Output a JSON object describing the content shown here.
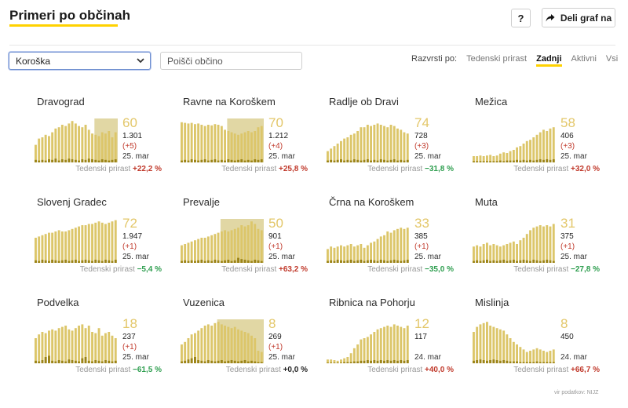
{
  "header": {
    "title": "Primeri po občinah",
    "help_label": "?",
    "share_label": "Deli graf na"
  },
  "filters": {
    "region_value": "Koroška",
    "search_placeholder": "Poišči občino",
    "sort_label": "Razvrsti po:",
    "sort_options": [
      "Tedenski prirast",
      "Zadnji",
      "Aktivni",
      "Vsi"
    ],
    "sort_active": "Zadnji"
  },
  "growth_label": "Tedenski prirast",
  "colors": {
    "bar_active": "#dcc66a",
    "bar_recent": "#c2a62f",
    "bar_dark": "#9c8418",
    "shade": "#c8b65a",
    "up": "#c0392b",
    "down": "#2e9e4f",
    "neutral": "#222222",
    "number": "#e3c76a",
    "accent": "#ffd200"
  },
  "chart_data": [
    {
      "type": "bar",
      "title": "Dravograd",
      "big": "60",
      "total": "1.301",
      "delta": "(+5)",
      "date": "25. mar",
      "growth": "+22,2 %",
      "trend": "up",
      "values": [
        28,
        38,
        40,
        44,
        42,
        48,
        54,
        56,
        60,
        58,
        62,
        66,
        62,
        58,
        56,
        60,
        52,
        46,
        44,
        42,
        48,
        46,
        50,
        40,
        48
      ],
      "recent": [
        4,
        3,
        4,
        3,
        5,
        4,
        6,
        3,
        5,
        4,
        6,
        5,
        4,
        3,
        5,
        4,
        6,
        5,
        4,
        3,
        5,
        4,
        3,
        4,
        5
      ],
      "shade_from": 18
    },
    {
      "type": "bar",
      "title": "Ravne na Koroškem",
      "big": "70",
      "total": "1.212",
      "delta": "(+4)",
      "date": "25. mar",
      "growth": "+25,8 %",
      "trend": "up",
      "values": [
        64,
        63,
        62,
        63,
        61,
        62,
        60,
        58,
        60,
        59,
        61,
        60,
        58,
        52,
        50,
        48,
        46,
        44,
        46,
        48,
        50,
        48,
        50,
        56,
        58
      ],
      "recent": [
        3,
        4,
        3,
        5,
        4,
        3,
        4,
        5,
        3,
        4,
        5,
        3,
        4,
        3,
        5,
        4,
        3,
        4,
        5,
        3,
        4,
        3,
        5,
        4,
        5
      ],
      "shade_from": 14
    },
    {
      "type": "bar",
      "title": "Radlje ob Dravi",
      "big": "74",
      "total": "728",
      "delta": "(+3)",
      "date": "25. mar",
      "growth": "−31,8 %",
      "trend": "down",
      "values": [
        18,
        22,
        26,
        30,
        34,
        38,
        40,
        44,
        46,
        50,
        56,
        56,
        60,
        58,
        60,
        62,
        60,
        58,
        56,
        60,
        58,
        54,
        52,
        48,
        46
      ],
      "recent": [
        3,
        4,
        3,
        4,
        5,
        3,
        4,
        3,
        5,
        4,
        3,
        4,
        5,
        3,
        4,
        3,
        5,
        4,
        3,
        4,
        5,
        3,
        4,
        3,
        4
      ],
      "shade_from": 25
    },
    {
      "type": "bar",
      "title": "Mežica",
      "big": "58",
      "total": "406",
      "delta": "(+3)",
      "date": "25. mar",
      "growth": "+32,0 %",
      "trend": "up",
      "values": [
        10,
        10,
        11,
        10,
        11,
        12,
        10,
        11,
        14,
        16,
        15,
        18,
        20,
        24,
        26,
        30,
        34,
        36,
        40,
        44,
        48,
        52,
        50,
        54,
        56
      ],
      "recent": [
        2,
        2,
        2,
        2,
        2,
        2,
        2,
        2,
        3,
        2,
        3,
        3,
        3,
        4,
        3,
        4,
        3,
        4,
        3,
        4,
        5,
        4,
        5,
        4,
        5
      ],
      "shade_from": 25
    },
    {
      "type": "bar",
      "title": "Slovenj Gradec",
      "big": "72",
      "total": "1.947",
      "delta": "(+1)",
      "date": "25. mar",
      "growth": "−5,4 %",
      "trend": "down",
      "values": [
        40,
        42,
        44,
        46,
        48,
        48,
        50,
        52,
        50,
        50,
        52,
        54,
        56,
        58,
        60,
        60,
        62,
        62,
        64,
        66,
        64,
        62,
        64,
        66,
        68
      ],
      "recent": [
        4,
        3,
        5,
        4,
        3,
        5,
        4,
        3,
        4,
        5,
        3,
        4,
        5,
        3,
        4,
        5,
        4,
        3,
        5,
        4,
        3,
        5,
        4,
        3,
        5
      ],
      "shade_from": 25
    },
    {
      "type": "bar",
      "title": "Prevalje",
      "big": "50",
      "total": "901",
      "delta": "(+1)",
      "date": "25. mar",
      "growth": "+63,2 %",
      "trend": "up",
      "values": [
        28,
        30,
        32,
        34,
        36,
        38,
        40,
        40,
        42,
        44,
        46,
        48,
        50,
        52,
        50,
        52,
        54,
        56,
        60,
        58,
        60,
        66,
        62,
        54,
        52
      ],
      "recent": [
        3,
        4,
        3,
        4,
        3,
        4,
        5,
        3,
        4,
        3,
        5,
        4,
        3,
        4,
        5,
        3,
        4,
        8,
        6,
        5,
        4,
        3,
        5,
        4,
        3
      ],
      "shade_from": 12
    },
    {
      "type": "bar",
      "title": "Črna na Koroškem",
      "big": "33",
      "total": "385",
      "delta": "(+1)",
      "date": "25. mar",
      "growth": "−35,0 %",
      "trend": "down",
      "values": [
        22,
        26,
        24,
        26,
        28,
        26,
        28,
        30,
        26,
        28,
        30,
        24,
        28,
        32,
        34,
        38,
        42,
        44,
        50,
        48,
        52,
        54,
        56,
        54,
        56
      ],
      "recent": [
        3,
        4,
        3,
        5,
        4,
        3,
        4,
        5,
        3,
        4,
        5,
        3,
        4,
        5,
        4,
        3,
        5,
        4,
        3,
        4,
        5,
        4,
        3,
        4,
        5
      ],
      "shade_from": 25
    },
    {
      "type": "bar",
      "title": "Muta",
      "big": "31",
      "total": "375",
      "delta": "(+1)",
      "date": "25. mar",
      "growth": "−27,8 %",
      "trend": "down",
      "values": [
        26,
        28,
        26,
        30,
        32,
        28,
        30,
        28,
        26,
        28,
        30,
        32,
        34,
        30,
        36,
        40,
        46,
        52,
        56,
        58,
        60,
        58,
        60,
        58,
        62
      ],
      "recent": [
        3,
        4,
        3,
        4,
        5,
        3,
        4,
        3,
        4,
        5,
        3,
        4,
        5,
        3,
        4,
        5,
        4,
        3,
        5,
        4,
        3,
        4,
        5,
        4,
        3
      ],
      "shade_from": 25
    },
    {
      "type": "bar",
      "title": "Podvelka",
      "big": "18",
      "total": "237",
      "delta": "(+1)",
      "date": "25. mar",
      "growth": "−61,5 %",
      "trend": "down",
      "values": [
        40,
        46,
        50,
        48,
        52,
        54,
        52,
        56,
        58,
        60,
        54,
        52,
        56,
        60,
        62,
        56,
        60,
        50,
        48,
        56,
        44,
        48,
        50,
        44,
        40
      ],
      "recent": [
        4,
        3,
        5,
        10,
        12,
        4,
        3,
        5,
        4,
        3,
        6,
        5,
        4,
        3,
        8,
        10,
        4,
        3,
        5,
        4,
        3,
        5,
        4,
        3,
        4
      ],
      "shade_from": 25
    },
    {
      "type": "bar",
      "title": "Vuzenica",
      "big": "8",
      "total": "269",
      "delta": "(+1)",
      "date": "25. mar",
      "growth": "+0,0 %",
      "trend": "neutral",
      "values": [
        30,
        34,
        40,
        46,
        48,
        52,
        56,
        60,
        62,
        60,
        64,
        66,
        62,
        60,
        58,
        56,
        58,
        54,
        52,
        50,
        48,
        44,
        40,
        20,
        18
      ],
      "recent": [
        3,
        4,
        6,
        8,
        10,
        5,
        4,
        3,
        5,
        4,
        3,
        4,
        5,
        3,
        4,
        5,
        4,
        3,
        4,
        5,
        3,
        4,
        3,
        2,
        2
      ],
      "shade_from": 11
    },
    {
      "type": "bar",
      "title": "Ribnica na Pohorju",
      "big": "12",
      "total": "117",
      "delta": "",
      "date": "24. mar",
      "growth": "+40,0 %",
      "trend": "up",
      "values": [
        6,
        6,
        5,
        4,
        6,
        8,
        10,
        16,
        24,
        30,
        38,
        40,
        42,
        46,
        50,
        54,
        56,
        58,
        60,
        58,
        62,
        60,
        58,
        56,
        60
      ],
      "recent": [
        1,
        1,
        1,
        1,
        1,
        2,
        2,
        2,
        3,
        3,
        4,
        4,
        5,
        4,
        5,
        4,
        5,
        4,
        5,
        4,
        5,
        4,
        5,
        4,
        5
      ],
      "shade_from": 25
    },
    {
      "type": "bar",
      "title": "Mislinja",
      "big": "8",
      "total": "450",
      "delta": "",
      "date": "24. mar",
      "growth": "+66,7 %",
      "trend": "up",
      "values": [
        50,
        58,
        62,
        64,
        66,
        60,
        58,
        56,
        54,
        52,
        46,
        40,
        34,
        30,
        26,
        22,
        18,
        20,
        22,
        24,
        22,
        20,
        18,
        20,
        22
      ],
      "recent": [
        4,
        5,
        6,
        5,
        4,
        5,
        6,
        5,
        4,
        5,
        4,
        3,
        3,
        3,
        2,
        2,
        2,
        2,
        2,
        3,
        2,
        2,
        2,
        2,
        2
      ],
      "shade_from": 25
    }
  ],
  "source": "vir podatkov: NIJZ"
}
